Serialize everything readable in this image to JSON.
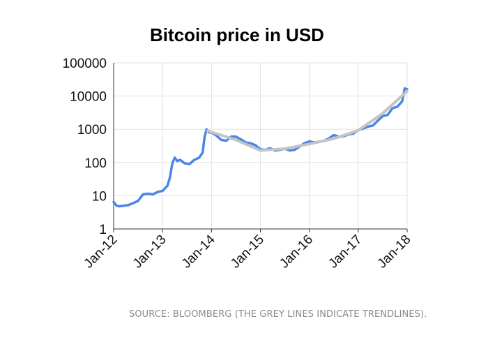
{
  "chart_data": {
    "type": "line",
    "title": "Bitcoin price in USD",
    "yscale": "log",
    "ylim": [
      1,
      100000
    ],
    "y_ticks": [
      "1",
      "10",
      "100",
      "1000",
      "10000",
      "100000"
    ],
    "x_ticks": [
      "Jan-12",
      "Jan-13",
      "Jan-14",
      "Jan-15",
      "Jan-16",
      "Jan-17",
      "Jan-18"
    ],
    "xlim": [
      2012.0,
      2018.0
    ],
    "grid": true,
    "series": [
      {
        "color": "#4a86e8",
        "x": [
          2012.0,
          2012.06,
          2012.12,
          2012.2,
          2012.3,
          2012.4,
          2012.5,
          2012.6,
          2012.7,
          2012.8,
          2012.9,
          2013.0,
          2013.1,
          2013.15,
          2013.2,
          2013.25,
          2013.3,
          2013.36,
          2013.45,
          2013.55,
          2013.65,
          2013.75,
          2013.82,
          2013.86,
          2013.9,
          2013.95,
          2014.0,
          2014.1,
          2014.2,
          2014.3,
          2014.4,
          2014.5,
          2014.6,
          2014.7,
          2014.8,
          2014.9,
          2015.0,
          2015.1,
          2015.2,
          2015.3,
          2015.4,
          2015.5,
          2015.6,
          2015.7,
          2015.8,
          2015.9,
          2016.0,
          2016.1,
          2016.2,
          2016.3,
          2016.4,
          2016.5,
          2016.6,
          2016.7,
          2016.8,
          2016.9,
          2017.0,
          2017.1,
          2017.2,
          2017.3,
          2017.4,
          2017.5,
          2017.6,
          2017.7,
          2017.8,
          2017.9,
          2017.95,
          2018.0
        ],
        "y": [
          6.5,
          5.0,
          4.8,
          5.0,
          5.2,
          6.0,
          7.0,
          11.0,
          11.5,
          11.0,
          13.0,
          14.0,
          20.0,
          35.0,
          95.0,
          140.0,
          110.0,
          120.0,
          95.0,
          90.0,
          120.0,
          140.0,
          200.0,
          600.0,
          1000.0,
          800.0,
          800.0,
          650.0,
          480.0,
          450.0,
          600.0,
          600.0,
          500.0,
          400.0,
          380.0,
          330.0,
          250.0,
          240.0,
          270.0,
          230.0,
          240.0,
          260.0,
          230.0,
          240.0,
          300.0,
          380.0,
          430.0,
          400.0,
          420.0,
          450.0,
          530.0,
          670.0,
          600.0,
          610.0,
          700.0,
          740.0,
          950.0,
          1050.0,
          1200.0,
          1300.0,
          1800.0,
          2500.0,
          2700.0,
          4300.0,
          4800.0,
          7000.0,
          17000.0,
          16000.0
        ]
      },
      {
        "color": "#c4c4c4",
        "x": [
          2013.92,
          2014.5,
          2015.0
        ],
        "y": [
          900.0,
          480.0,
          230.0
        ]
      },
      {
        "color": "#c4c4c4",
        "x": [
          2015.0,
          2015.5,
          2016.0,
          2016.5,
          2017.0,
          2017.5,
          2018.0
        ],
        "y": [
          230.0,
          260.0,
          360.0,
          520.0,
          920.0,
          3000.0,
          14000.0
        ]
      }
    ]
  },
  "source_note": "SOURCE: BLOOMBERG (THE GREY LINES INDICATE TRENDLINES)."
}
